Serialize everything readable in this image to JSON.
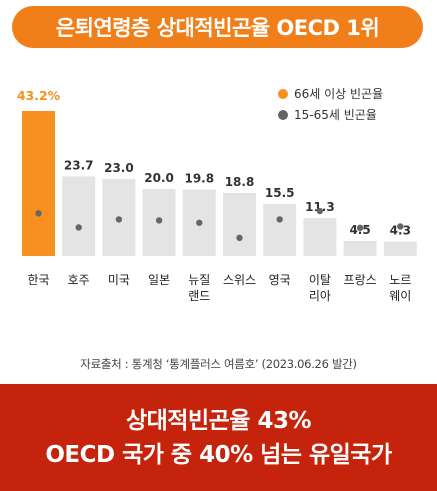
{
  "header": {
    "title": "은퇴연령층 상대적빈곤율 OECD 1위"
  },
  "chart_data": {
    "type": "bar",
    "title": "은퇴연령층 상대적빈곤율 OECD 1위",
    "categories": [
      "한국",
      "호주",
      "미국",
      "일본",
      "뉴질\n랜드",
      "스위스",
      "영국",
      "이탈\n리아",
      "프랑스",
      "노르\n웨이"
    ],
    "series": [
      {
        "name": "66세 이상 빈곤율",
        "values": [
          43.2,
          23.7,
          23.0,
          20.0,
          19.8,
          18.8,
          15.5,
          11.3,
          4.5,
          4.3
        ]
      },
      {
        "name": "15-65세 빈곤율",
        "values": [
          12.7,
          8.5,
          10.9,
          10.6,
          9.9,
          5.4,
          10.9,
          13.4,
          8.4,
          8.8
        ]
      }
    ],
    "value_labels": [
      "43.2%",
      "23.7",
      "23.0",
      "20.0",
      "19.8",
      "18.8",
      "15.5",
      "11.3",
      "4.5",
      "4.3"
    ],
    "highlight_index": 0,
    "legend_position": "top-right",
    "ylim": [
      0,
      45
    ],
    "grid": false,
    "colors": {
      "highlight_bar": "#f7901e",
      "bar": "#e4e4e4",
      "dot": "#666666",
      "highlight_label": "#f7901e",
      "label": "#333333",
      "legend_orange": "#f7901e",
      "legend_gray": "#666666"
    }
  },
  "footer": {
    "source": "자료출처 : 통계청 ‘통계플러스 여름호’ (2023.06.26 발간)",
    "banner_line1": "상대적빈곤율 43%",
    "banner_line2": "OECD 국가 중 40% 넘는 유일국가"
  },
  "colors": {
    "title_bg": "#f07e19",
    "banner_bg": "#c5230c"
  }
}
